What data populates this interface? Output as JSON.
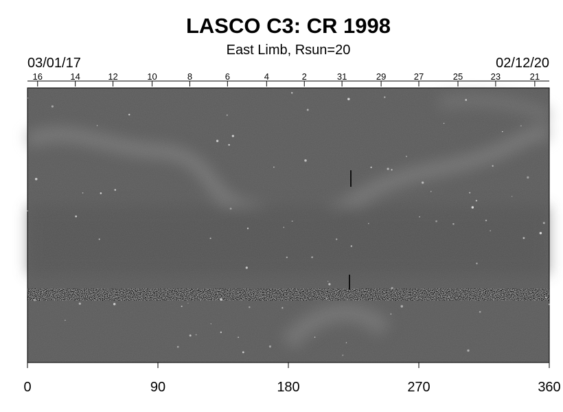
{
  "chart_data": {
    "type": "synoptic-map",
    "title": "LASCO C3: CR 1998",
    "subtitle": "East Limb, Rsun=20",
    "start_date": "03/01/17",
    "end_date": "02/12/20",
    "xlim": [
      0,
      360
    ],
    "xticks": [
      0,
      90,
      180,
      270,
      360
    ],
    "top_ticks": [
      {
        "value": 7,
        "label": "16"
      },
      {
        "value": 33,
        "label": "14"
      },
      {
        "value": 59,
        "label": "12"
      },
      {
        "value": 86,
        "label": "10"
      },
      {
        "value": 112,
        "label": "8"
      },
      {
        "value": 138,
        "label": "6"
      },
      {
        "value": 165,
        "label": "4"
      },
      {
        "value": 191,
        "label": "2"
      },
      {
        "value": 217,
        "label": "31"
      },
      {
        "value": 244,
        "label": "29"
      },
      {
        "value": 270,
        "label": "27"
      },
      {
        "value": 297,
        "label": "25"
      },
      {
        "value": 323,
        "label": "23"
      },
      {
        "value": 350,
        "label": "21"
      }
    ]
  }
}
